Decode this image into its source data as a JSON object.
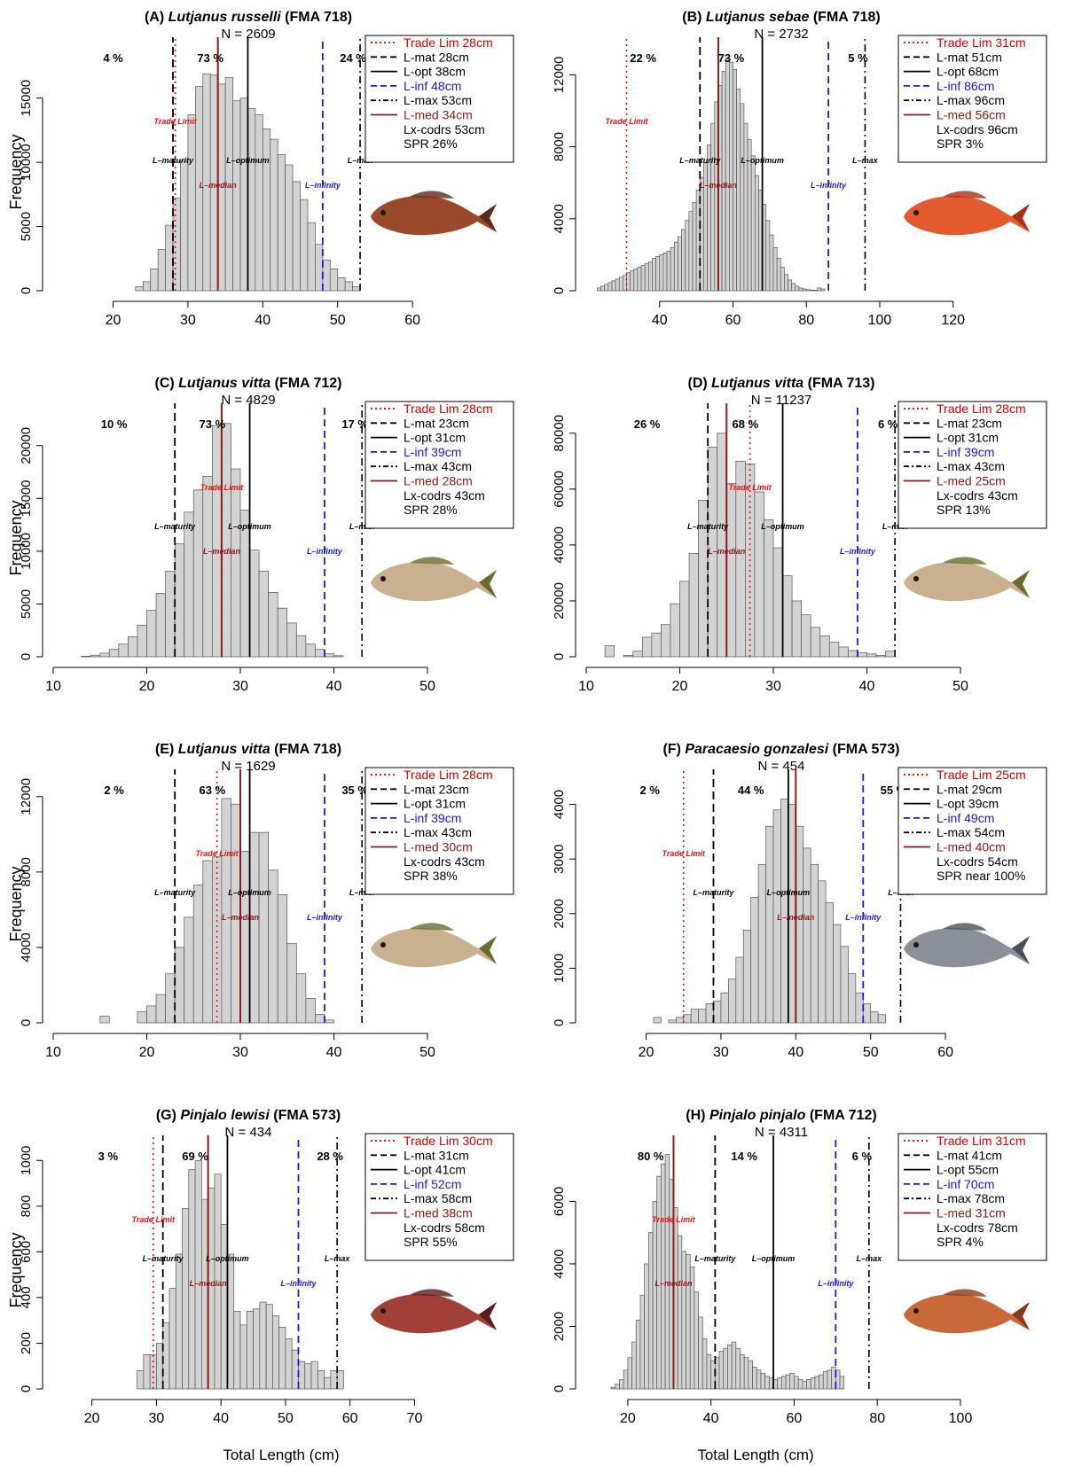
{
  "xlabel": "Total Length (cm)",
  "ylabel": "Frequency",
  "marker_labels": {
    "trade": "Trade Limit",
    "mat": "L–maturity",
    "opt": "L–optimum",
    "med": "L–median",
    "inf": "L–infinity",
    "max": "L–max"
  },
  "colors": {
    "bar_fill": "#d3d3d3",
    "bar_stroke": "#555555",
    "trade": "#e8120c",
    "mat": "#000000",
    "opt": "#000000",
    "inf": "#1a1adb",
    "max": "#000000",
    "med": "#8b1a1a",
    "legend_red": "#d40000",
    "legend_blue": "#1a1adb",
    "legend_brown": "#8b1a1a"
  },
  "chart_data": [
    {
      "type": "bar",
      "panel": "(A)",
      "species": "Lutjanus russelli",
      "region": "(FMA 718)",
      "n_label": "N = 2609",
      "xlim": [
        12,
        62
      ],
      "xticks": [
        20,
        30,
        40,
        50,
        60
      ],
      "ylim": [
        0,
        18500
      ],
      "yticks": [
        0,
        5000,
        10000,
        15000
      ],
      "bin_start": 23,
      "bin_width": 1,
      "values": [
        300,
        700,
        1700,
        3200,
        5100,
        7200,
        10100,
        13700,
        15900,
        16900,
        16800,
        16100,
        16600,
        14800,
        15000,
        14200,
        13700,
        12600,
        11800,
        10600,
        9800,
        8500,
        7100,
        5300,
        3600,
        2400,
        1700,
        1000,
        700,
        300
      ],
      "markers": {
        "trade": 28.3,
        "mat": 28,
        "opt": 38,
        "inf": 48,
        "max": 53,
        "med": 34
      },
      "pcts": [
        "4 %",
        "73 %",
        "24 %"
      ],
      "legend": [
        "Trade Lim 28cm",
        "L-mat 28cm",
        "L-opt 38cm",
        "L-inf 48cm",
        "L-max 53cm",
        "L-med 34cm",
        "Lx-codrs 53cm",
        "SPR 26%"
      ]
    },
    {
      "type": "bar",
      "panel": "(B)",
      "species": "Lutjanus sebae",
      "region": "(FMA 718)",
      "n_label": "N = 2732",
      "xlim": [
        20,
        122
      ],
      "xticks": [
        40,
        60,
        80,
        100,
        120
      ],
      "ylim": [
        0,
        13200
      ],
      "yticks": [
        0,
        4000,
        8000,
        12000
      ],
      "bin_start": 23,
      "bin_width": 1,
      "values": [
        150,
        250,
        350,
        450,
        550,
        650,
        750,
        850,
        1000,
        1100,
        1200,
        1300,
        1400,
        1500,
        1600,
        1800,
        1900,
        2000,
        2100,
        2200,
        2400,
        2700,
        3000,
        3400,
        3900,
        4400,
        4900,
        5600,
        6300,
        7100,
        8100,
        9300,
        10500,
        11400,
        12200,
        12900,
        12700,
        12300,
        11200,
        10400,
        9300,
        8400,
        7500,
        6400,
        5600,
        4800,
        3900,
        3100,
        2400,
        1800,
        1300,
        900,
        600,
        400,
        250,
        150,
        100,
        60,
        40,
        30,
        150,
        100
      ],
      "markers": {
        "trade": 31,
        "mat": 51,
        "opt": 68,
        "inf": 86,
        "max": 96,
        "med": 56
      },
      "pcts": [
        "22 %",
        "73 %",
        "5 %"
      ],
      "legend": [
        "Trade Lim 31cm",
        "L-mat 51cm",
        "L-opt 68cm",
        "L-inf 86cm",
        "L-max 96cm",
        "L-med 56cm",
        "Lx-codrs 96cm",
        "SPR 3%"
      ]
    },
    {
      "type": "bar",
      "panel": "(C)",
      "species": "Lutjanus vitta",
      "region": "(FMA 712)",
      "n_label": "N = 4829",
      "xlim": [
        10,
        50
      ],
      "xticks": [
        10,
        20,
        30,
        40,
        50
      ],
      "ylim": [
        0,
        22500
      ],
      "yticks": [
        0,
        5000,
        10000,
        15000,
        20000
      ],
      "bin_start": 13,
      "bin_width": 1,
      "values": [
        50,
        150,
        350,
        700,
        1200,
        1900,
        3000,
        4400,
        6000,
        8100,
        10700,
        13700,
        15800,
        17100,
        21900,
        22100,
        17800,
        13900,
        10100,
        8100,
        6100,
        4600,
        3200,
        2000,
        1200,
        700,
        300,
        100
      ],
      "markers": {
        "trade": 28,
        "mat": 23,
        "opt": 31,
        "inf": 39,
        "max": 43,
        "med": 28
      },
      "pcts": [
        "10 %",
        "73 %",
        "17 %"
      ],
      "legend": [
        "Trade Lim 28cm",
        "L-mat 23cm",
        "L-opt 31cm",
        "L-inf 39cm",
        "L-max 43cm",
        "L-med 28cm",
        "Lx-codrs 43cm",
        "SPR 28%"
      ]
    },
    {
      "type": "bar",
      "panel": "(D)",
      "species": "Lutjanus vitta",
      "region": "(FMA 713)",
      "n_label": "N = 11237",
      "xlim": [
        10,
        50
      ],
      "xticks": [
        10,
        20,
        30,
        40,
        50
      ],
      "ylim": [
        0,
        85000
      ],
      "yticks": [
        0,
        20000,
        40000,
        60000,
        80000
      ],
      "bin_start": 12,
      "bin_width": 1,
      "values": [
        4000,
        0,
        500,
        2000,
        7000,
        8500,
        11500,
        19000,
        27000,
        37000,
        56000,
        75000,
        80000,
        62000,
        70000,
        69000,
        59000,
        49000,
        39000,
        29000,
        20000,
        15000,
        10500,
        7500,
        5200,
        3500,
        2200,
        1500,
        1000,
        500,
        2000
      ],
      "markers": {
        "trade": 27.5,
        "mat": 23,
        "opt": 31,
        "inf": 39,
        "max": 43,
        "med": 25
      },
      "pcts": [
        "26 %",
        "68 %",
        "6 %"
      ],
      "legend": [
        "Trade Lim 28cm",
        "L-mat 23cm",
        "L-opt 31cm",
        "L-inf 39cm",
        "L-max 43cm",
        "L-med 25cm",
        "Lx-codrs 43cm",
        "SPR 13%"
      ]
    },
    {
      "type": "bar",
      "panel": "(E)",
      "species": "Lutjanus vitta",
      "region": "(FMA 718)",
      "n_label": "N = 1629",
      "xlim": [
        10,
        50
      ],
      "xticks": [
        10,
        20,
        30,
        40,
        50
      ],
      "ylim": [
        0,
        12600
      ],
      "yticks": [
        0,
        4000,
        8000,
        12000
      ],
      "bin_start": 15,
      "bin_width": 1,
      "values": [
        350,
        0,
        0,
        0,
        600,
        900,
        1500,
        2600,
        4000,
        5600,
        7300,
        8600,
        8800,
        11900,
        11600,
        9100,
        10100,
        10100,
        8100,
        6800,
        4200,
        2600,
        1300,
        450,
        150
      ],
      "markers": {
        "trade": 27.5,
        "mat": 23,
        "opt": 31,
        "inf": 39,
        "max": 43,
        "med": 30
      },
      "pcts": [
        "2 %",
        "63 %",
        "35 %"
      ],
      "legend": [
        "Trade Lim 28cm",
        "L-mat 23cm",
        "L-opt 31cm",
        "L-inf 39cm",
        "L-max 43cm",
        "L-med 30cm",
        "Lx-codrs 43cm",
        "SPR 38%"
      ]
    },
    {
      "type": "bar",
      "panel": "(F)",
      "species": "Paracaesio gonzalesi",
      "region": "(FMA 573)",
      "n_label": "N = 454",
      "xlim": [
        12,
        62
      ],
      "xticks": [
        20,
        30,
        40,
        50,
        60
      ],
      "ylim": [
        0,
        4350
      ],
      "yticks": [
        0,
        1000,
        2000,
        3000,
        4000
      ],
      "bin_start": 21,
      "bin_width": 1,
      "values": [
        100,
        0,
        50,
        100,
        150,
        250,
        250,
        350,
        400,
        550,
        800,
        1200,
        1700,
        2300,
        2900,
        3600,
        3900,
        4100,
        4000,
        3600,
        3200,
        2900,
        2600,
        2200,
        1800,
        1400,
        900,
        550,
        350,
        200,
        150
      ],
      "markers": {
        "trade": 25,
        "mat": 29,
        "opt": 39,
        "inf": 49,
        "max": 54,
        "med": 40
      },
      "pcts": [
        "2 %",
        "44 %",
        "55 %"
      ],
      "legend": [
        "Trade Lim 25cm",
        "L-mat 29cm",
        "L-opt 39cm",
        "L-inf 49cm",
        "L-max 54cm",
        "L-med 40cm",
        "Lx-codrs 54cm",
        "SPR near 100%"
      ]
    },
    {
      "type": "bar",
      "panel": "(G)",
      "species": "Pinjalo lewisi",
      "region": "(FMA 573)",
      "n_label": "N = 434",
      "xlim": [
        14,
        72
      ],
      "xticks": [
        20,
        30,
        40,
        50,
        60,
        70
      ],
      "ylim": [
        0,
        1040
      ],
      "yticks": [
        0,
        200,
        400,
        600,
        800,
        1000
      ],
      "bin_start": 27,
      "bin_width": 1,
      "values": [
        80,
        150,
        150,
        200,
        290,
        440,
        590,
        790,
        960,
        1000,
        830,
        880,
        940,
        720,
        590,
        340,
        280,
        340,
        350,
        380,
        370,
        320,
        270,
        220,
        170,
        120,
        110,
        120,
        80,
        50,
        80,
        80
      ],
      "markers": {
        "trade": 29.5,
        "mat": 31,
        "opt": 41,
        "inf": 52,
        "max": 58,
        "med": 38
      },
      "pcts": [
        "3 %",
        "69 %",
        "28 %"
      ],
      "legend": [
        "Trade Lim 30cm",
        "L-mat 31cm",
        "L-opt 41cm",
        "L-inf 52cm",
        "L-max 58cm",
        "L-med 38cm",
        "Lx-codrs 58cm",
        "SPR 55%"
      ]
    },
    {
      "type": "bar",
      "panel": "(H)",
      "species": "Pinjalo pinjalo",
      "region": "(FMA 712)",
      "n_label": "N = 4311",
      "xlim": [
        10,
        100
      ],
      "xticks": [
        20,
        40,
        60,
        80,
        100
      ],
      "ylim": [
        0,
        7600
      ],
      "yticks": [
        0,
        2000,
        4000,
        6000
      ],
      "bin_start": 16,
      "bin_width": 1,
      "values": [
        50,
        150,
        300,
        600,
        1000,
        1500,
        2200,
        3000,
        4000,
        5000,
        6000,
        6800,
        7200,
        7500,
        6700,
        5800,
        4900,
        4400,
        4300,
        3900,
        3100,
        2300,
        1600,
        1100,
        900,
        1000,
        1200,
        1300,
        1400,
        1500,
        1300,
        1100,
        1000,
        900,
        700,
        600,
        500,
        400,
        350,
        300,
        350,
        400,
        450,
        500,
        400,
        300,
        250,
        300,
        350,
        400,
        450,
        550,
        600,
        700,
        600,
        400
      ],
      "markers": {
        "trade": 31,
        "mat": 41,
        "opt": 55,
        "inf": 70,
        "max": 78,
        "med": 31
      },
      "pcts": [
        "80 %",
        "14 %",
        "6 %"
      ],
      "legend": [
        "Trade Lim 31cm",
        "L-mat 41cm",
        "L-opt 55cm",
        "L-inf 70cm",
        "L-max 78cm",
        "L-med 31cm",
        "Lx-codrs 78cm",
        "SPR 4%"
      ]
    }
  ]
}
